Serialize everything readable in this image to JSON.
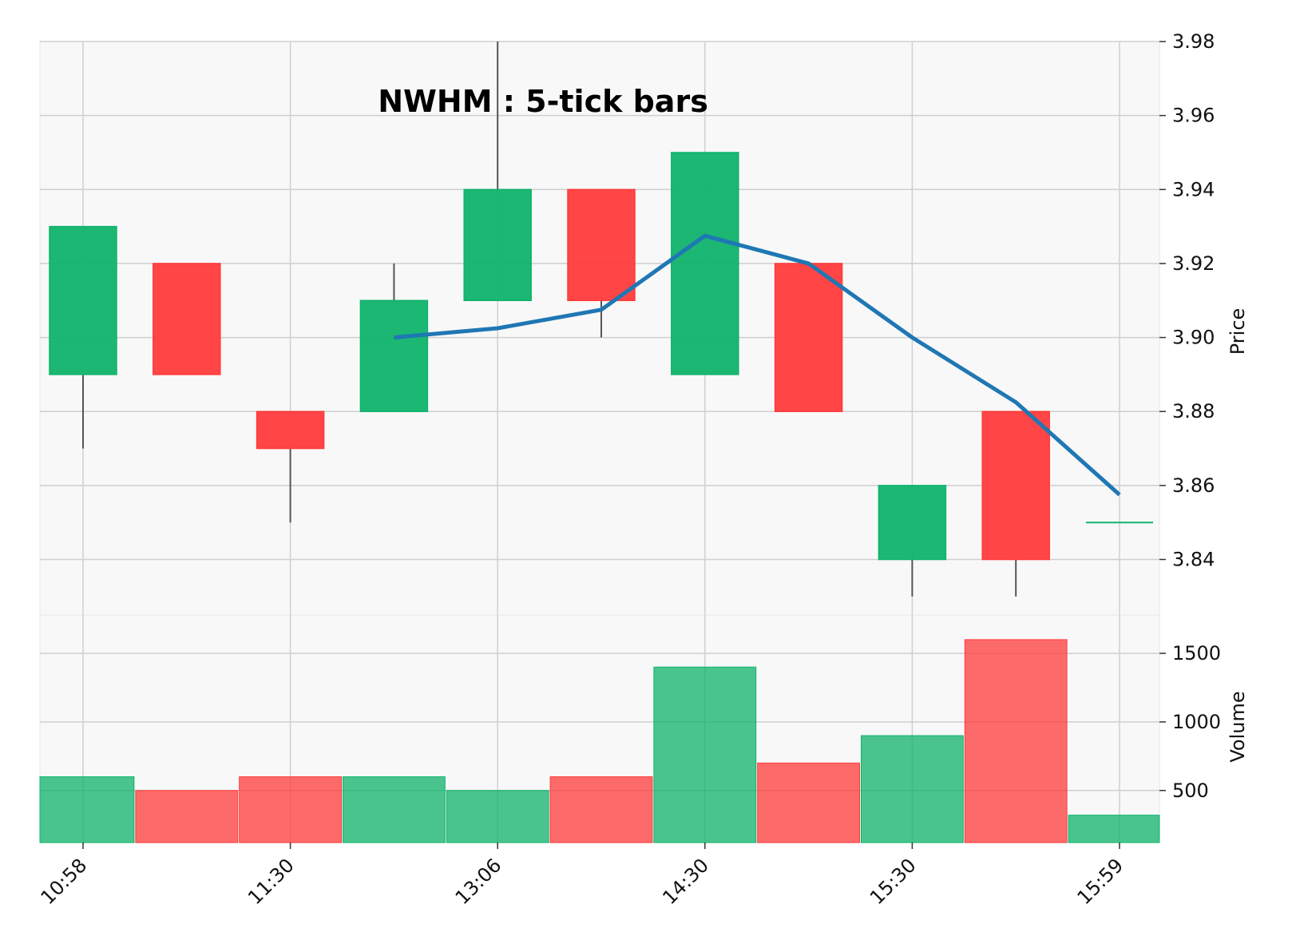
{
  "chart_data": {
    "type": "candlestick",
    "title": "NWHM : 5-tick bars",
    "colors": {
      "up": "#0fb36b",
      "down": "#ff3b3b",
      "wick": "#555555",
      "ma": "#1f77b4",
      "grid": "#cfcfcf",
      "panel_bg": "#f8f8f8"
    },
    "x_tick_labels": [
      {
        "index": 0,
        "label": "10:58"
      },
      {
        "index": 2,
        "label": "11:30"
      },
      {
        "index": 4,
        "label": "13:06"
      },
      {
        "index": 6,
        "label": "14:30"
      },
      {
        "index": 8,
        "label": "15:30"
      },
      {
        "index": 10,
        "label": "15:59"
      }
    ],
    "price_panel": {
      "ylabel": "Price",
      "ylim": [
        3.825,
        3.98
      ],
      "yticks": [
        "3.84",
        "3.86",
        "3.88",
        "3.90",
        "3.92",
        "3.94",
        "3.96",
        "3.98"
      ],
      "candles": [
        {
          "open": 3.89,
          "high": 3.93,
          "low": 3.87,
          "close": 3.93
        },
        {
          "open": 3.92,
          "high": 3.92,
          "low": 3.89,
          "close": 3.89
        },
        {
          "open": 3.88,
          "high": 3.88,
          "low": 3.85,
          "close": 3.87
        },
        {
          "open": 3.88,
          "high": 3.92,
          "low": 3.88,
          "close": 3.91
        },
        {
          "open": 3.91,
          "high": 3.98,
          "low": 3.91,
          "close": 3.94
        },
        {
          "open": 3.94,
          "high": 3.94,
          "low": 3.9,
          "close": 3.91
        },
        {
          "open": 3.89,
          "high": 3.95,
          "low": 3.89,
          "close": 3.95
        },
        {
          "open": 3.92,
          "high": 3.92,
          "low": 3.88,
          "close": 3.88
        },
        {
          "open": 3.84,
          "high": 3.86,
          "low": 3.83,
          "close": 3.86
        },
        {
          "open": 3.88,
          "high": 3.88,
          "low": 3.83,
          "close": 3.84
        },
        {
          "open": 3.85,
          "high": 3.85,
          "low": 3.85,
          "close": 3.85
        }
      ],
      "moving_average": [
        null,
        null,
        null,
        3.9,
        3.9025,
        3.9075,
        3.9275,
        3.92,
        3.9,
        3.8825,
        3.8575
      ]
    },
    "volume_panel": {
      "ylabel": "Volume",
      "ylim": [
        120,
        1780
      ],
      "yticks": [
        "500",
        "1000",
        "1500"
      ],
      "volumes": [
        600,
        500,
        600,
        600,
        500,
        600,
        1400,
        700,
        900,
        1600,
        320
      ]
    }
  }
}
